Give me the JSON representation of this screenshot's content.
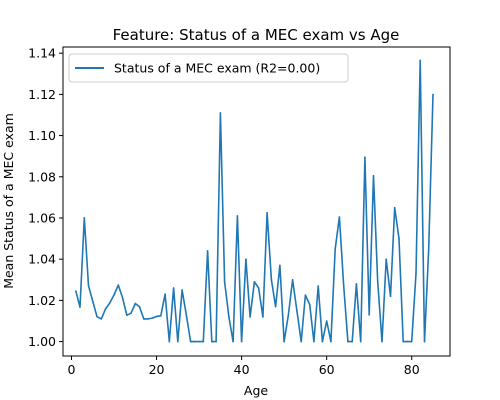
{
  "chart_data": {
    "type": "line",
    "title": "Feature: Status of a MEC exam vs Age",
    "xlabel": "Age",
    "ylabel": "Mean Status of a MEC exam",
    "xlim": [
      -2,
      89
    ],
    "ylim": [
      0.993,
      1.143
    ],
    "xticks": [
      0,
      20,
      40,
      60,
      80
    ],
    "xtick_labels": [
      "0",
      "20",
      "40",
      "60",
      "80"
    ],
    "yticks": [
      1.0,
      1.02,
      1.04,
      1.06,
      1.08,
      1.1,
      1.12,
      1.14
    ],
    "ytick_labels": [
      "1.00",
      "1.02",
      "1.04",
      "1.06",
      "1.08",
      "1.10",
      "1.12",
      "1.14"
    ],
    "grid": false,
    "legend_position": "top-left",
    "series": [
      {
        "name": "Status of a MEC exam (R2=0.00)",
        "color": "#1f77b4",
        "x": [
          1,
          2,
          3,
          4,
          5,
          6,
          7,
          8,
          9,
          10,
          11,
          12,
          13,
          14,
          15,
          16,
          17,
          18,
          19,
          20,
          21,
          22,
          23,
          24,
          25,
          26,
          27,
          28,
          29,
          30,
          31,
          32,
          33,
          34,
          35,
          36,
          37,
          38,
          39,
          40,
          41,
          42,
          43,
          44,
          45,
          46,
          47,
          48,
          49,
          50,
          51,
          52,
          53,
          54,
          55,
          56,
          57,
          58,
          59,
          60,
          61,
          62,
          63,
          64,
          65,
          66,
          67,
          68,
          69,
          70,
          71,
          72,
          73,
          74,
          75,
          76,
          77,
          78,
          79,
          80,
          81,
          82,
          83,
          84,
          85
        ],
        "y": [
          1.0245,
          1.0168,
          1.0601,
          1.0271,
          1.0195,
          1.0121,
          1.011,
          1.0158,
          1.0188,
          1.0226,
          1.0274,
          1.0214,
          1.0128,
          1.0138,
          1.0185,
          1.0169,
          1.011,
          1.011,
          1.0114,
          1.0122,
          1.0125,
          1.023,
          1.0,
          1.026,
          1.0,
          1.025,
          1.013,
          1.0,
          1.0,
          1.0,
          1.0,
          1.044,
          1.0,
          1.0,
          1.111,
          1.029,
          1.012,
          1.0,
          1.061,
          1.0,
          1.04,
          1.012,
          1.029,
          1.026,
          1.012,
          1.0625,
          1.03,
          1.017,
          1.037,
          1.0,
          1.013,
          1.03,
          1.015,
          1.0,
          1.0225,
          1.018,
          1.0,
          1.027,
          1.0,
          1.01,
          1.0,
          1.045,
          1.0605,
          1.027,
          1.0,
          1.0,
          1.028,
          1.0,
          1.0895,
          1.013,
          1.0805,
          1.029,
          1.0,
          1.04,
          1.022,
          1.065,
          1.05,
          1.0,
          1.0,
          1.0,
          1.033,
          1.1365,
          1.0,
          1.045,
          1.12
        ]
      }
    ]
  }
}
